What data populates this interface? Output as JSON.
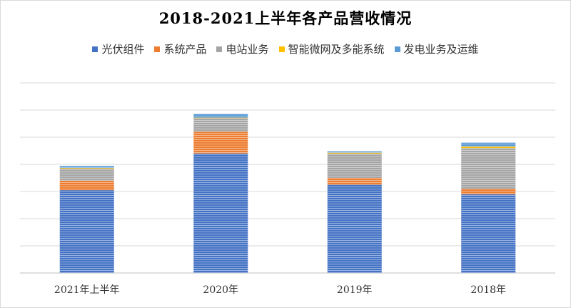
{
  "chart_data": {
    "type": "stacked-bar",
    "title": "2018-2021上半年各产品营收情况",
    "categories": [
      "2021年上半年",
      "2020年",
      "2019年",
      "2018年"
    ],
    "series": [
      {
        "name": "光伏组件",
        "color": "#4472c4",
        "values": [
          30.5,
          44.0,
          32.5,
          29.0
        ]
      },
      {
        "name": "系统产品",
        "color": "#ed7d31",
        "values": [
          3.5,
          8.0,
          2.5,
          2.0
        ]
      },
      {
        "name": "电站业务",
        "color": "#a5a5a5",
        "values": [
          4.5,
          5.0,
          9.0,
          15.0
        ]
      },
      {
        "name": "智能微网及多能系统",
        "color": "#ffc000",
        "values": [
          0.2,
          0.2,
          0.3,
          0.5
        ]
      },
      {
        "name": "发电业务及运维",
        "color": "#5b9bd5",
        "values": [
          0.7,
          1.4,
          0.5,
          1.5
        ]
      }
    ],
    "ylim": [
      0,
      70
    ],
    "gridlines": true,
    "legend_position": "top"
  }
}
